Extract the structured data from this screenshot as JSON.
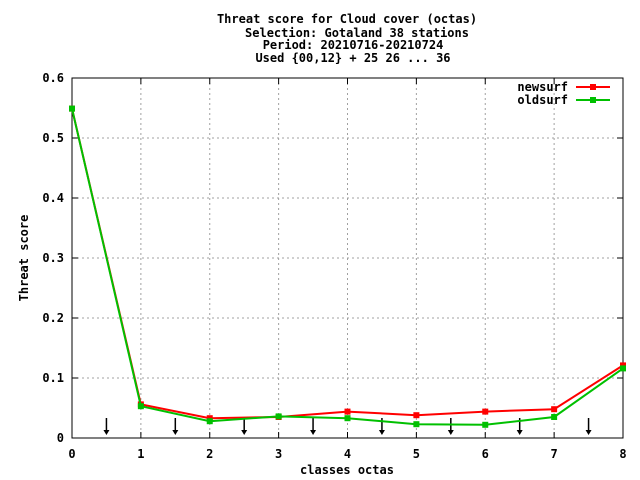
{
  "chart_data": {
    "type": "line",
    "title_lines": [
      "Threat score  for Cloud cover (octas)",
      "Selection: Gotaland     38 stations",
      "Period: 20210716-20210724",
      "Used {00,12} + 25 26 ... 36"
    ],
    "xlabel": "classes octas",
    "ylabel": "Threat score",
    "xlim": [
      0,
      8
    ],
    "ylim": [
      0,
      0.6
    ],
    "x_ticks": [
      "0",
      "1",
      "2",
      "3",
      "4",
      "5",
      "6",
      "7",
      "8"
    ],
    "y_ticks": [
      "0",
      "0.1",
      "0.2",
      "0.3",
      "0.4",
      "0.5",
      "0.6"
    ],
    "grid": true,
    "legend_position": "top-right",
    "x": [
      0,
      1,
      2,
      3,
      4,
      5,
      6,
      7,
      8
    ],
    "series": [
      {
        "name": "newsurf",
        "color": "#ff0000",
        "values": [
          0.549,
          0.056,
          0.033,
          0.035,
          0.044,
          0.038,
          0.044,
          0.048,
          0.121
        ]
      },
      {
        "name": "oldsurf",
        "color": "#00c000",
        "values": [
          0.549,
          0.053,
          0.028,
          0.036,
          0.033,
          0.023,
          0.022,
          0.035,
          0.116
        ]
      }
    ],
    "arrow_markers_x": [
      0.5,
      1.5,
      2.5,
      3.5,
      4.5,
      5.5,
      6.5,
      7.5
    ]
  }
}
